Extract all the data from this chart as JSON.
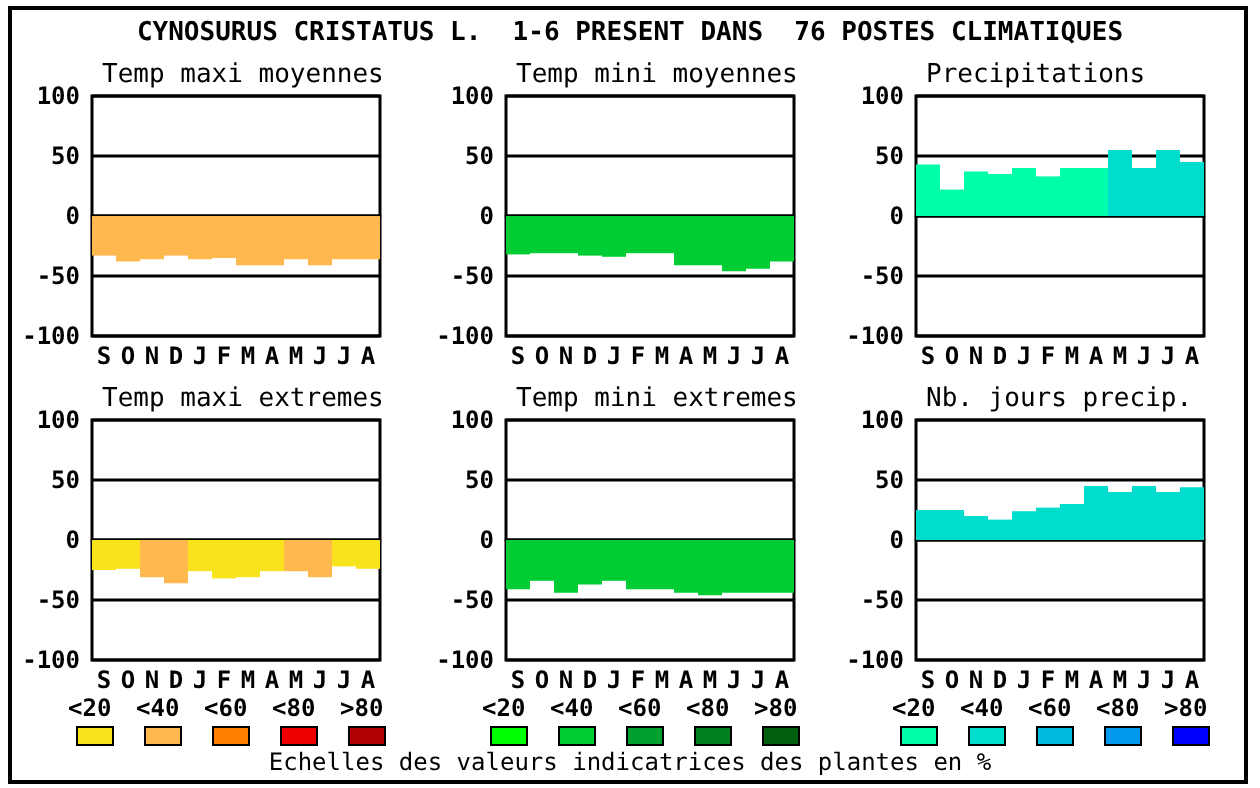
{
  "chart_data": [
    {
      "type": "bar",
      "title": "Temp maxi moyennes",
      "categories": [
        "S",
        "O",
        "N",
        "D",
        "J",
        "F",
        "M",
        "A",
        "M",
        "J",
        "J",
        "A"
      ],
      "values": [
        -33,
        -38,
        -36,
        -33,
        -36,
        -35,
        -41,
        -41,
        -36,
        -41,
        -36,
        -36
      ],
      "colors": [
        "#ffb84d",
        "#ffb84d",
        "#ffb84d",
        "#ffb84d",
        "#ffb84d",
        "#ffb84d",
        "#ffb84d",
        "#ffb84d",
        "#ffb84d",
        "#ffb84d",
        "#ffb84d",
        "#ffb84d"
      ],
      "ylim": [
        -100,
        100
      ],
      "yticks": [
        -100,
        -50,
        0,
        50,
        100
      ],
      "grid": "y"
    },
    {
      "type": "bar",
      "title": "Temp mini moyennes",
      "categories": [
        "S",
        "O",
        "N",
        "D",
        "J",
        "F",
        "M",
        "A",
        "M",
        "J",
        "J",
        "A"
      ],
      "values": [
        -32,
        -31,
        -31,
        -33,
        -34,
        -31,
        -31,
        -41,
        -41,
        -46,
        -44,
        -38
      ],
      "colors": [
        "#00cc33",
        "#00cc33",
        "#00cc33",
        "#00cc33",
        "#00cc33",
        "#00cc33",
        "#00cc33",
        "#00cc33",
        "#00cc33",
        "#00cc33",
        "#00cc33",
        "#00cc33"
      ],
      "ylim": [
        -100,
        100
      ],
      "yticks": [
        -100,
        -50,
        0,
        50,
        100
      ],
      "grid": "y"
    },
    {
      "type": "bar",
      "title": "Precipitations",
      "categories": [
        "S",
        "O",
        "N",
        "D",
        "J",
        "F",
        "M",
        "A",
        "M",
        "J",
        "J",
        "A"
      ],
      "values": [
        43,
        22,
        37,
        35,
        40,
        33,
        40,
        40,
        55,
        40,
        55,
        45
      ],
      "colors": [
        "#00ffaa",
        "#00ffaa",
        "#00ffaa",
        "#00ffaa",
        "#00ffaa",
        "#00ffaa",
        "#00ffaa",
        "#00ffaa",
        "#00ddcc",
        "#00ddcc",
        "#00ddcc",
        "#00ddcc"
      ],
      "ylim": [
        -100,
        100
      ],
      "yticks": [
        -100,
        -50,
        0,
        50,
        100
      ],
      "grid": "y"
    },
    {
      "type": "bar",
      "title": "Temp maxi extremes",
      "categories": [
        "S",
        "O",
        "N",
        "D",
        "J",
        "F",
        "M",
        "A",
        "M",
        "J",
        "J",
        "A"
      ],
      "values": [
        -25,
        -24,
        -31,
        -36,
        -26,
        -32,
        -31,
        -26,
        -26,
        -31,
        -22,
        -24
      ],
      "colors": [
        "#f8e41c",
        "#f8e41c",
        "#ffb84d",
        "#ffb84d",
        "#f8e41c",
        "#f8e41c",
        "#f8e41c",
        "#f8e41c",
        "#ffb84d",
        "#ffb84d",
        "#f8e41c",
        "#f8e41c"
      ],
      "ylim": [
        -100,
        100
      ],
      "yticks": [
        -100,
        -50,
        0,
        50,
        100
      ],
      "grid": "y"
    },
    {
      "type": "bar",
      "title": "Temp mini extremes",
      "categories": [
        "S",
        "O",
        "N",
        "D",
        "J",
        "F",
        "M",
        "A",
        "M",
        "J",
        "J",
        "A"
      ],
      "values": [
        -41,
        -34,
        -44,
        -37,
        -34,
        -41,
        -41,
        -44,
        -46,
        -44,
        -44,
        -44
      ],
      "colors": [
        "#00cc33",
        "#00cc33",
        "#00cc33",
        "#00cc33",
        "#00cc33",
        "#00cc33",
        "#00cc33",
        "#00cc33",
        "#00cc33",
        "#00cc33",
        "#00cc33",
        "#00cc33"
      ],
      "ylim": [
        -100,
        100
      ],
      "yticks": [
        -100,
        -50,
        0,
        50,
        100
      ],
      "grid": "y"
    },
    {
      "type": "bar",
      "title": "Nb. jours precip.",
      "categories": [
        "S",
        "O",
        "N",
        "D",
        "J",
        "F",
        "M",
        "A",
        "M",
        "J",
        "J",
        "A"
      ],
      "values": [
        25,
        25,
        20,
        17,
        24,
        27,
        30,
        45,
        40,
        45,
        40,
        44
      ],
      "colors": [
        "#00ddcc",
        "#00ddcc",
        "#00ddcc",
        "#00ddcc",
        "#00ddcc",
        "#00ddcc",
        "#00ddcc",
        "#00ddcc",
        "#00ddcc",
        "#00ddcc",
        "#00ddcc",
        "#00ddcc"
      ],
      "ylim": [
        -100,
        100
      ],
      "yticks": [
        -100,
        -50,
        0,
        50,
        100
      ],
      "grid": "y"
    },
    {
      "type": "other",
      "title": "CYNOSURUS CRISTATUS L.  1-6 PRESENT DANS  76 POSTES CLIMATIQUES",
      "categories": [
        "<20",
        "<40",
        "<60",
        "<80",
        ">80",
        "<20",
        "<40",
        "<60",
        "<80",
        ">80",
        "<20",
        "<40",
        "<60",
        "<80",
        ">80"
      ],
      "colors": [
        "#f8e41c",
        "#ffb84d",
        "#ff8000",
        "#ee0000",
        "#b00000",
        "#00ff00",
        "#00cc33",
        "#00a030",
        "#008020",
        "#006010",
        "#00ffaa",
        "#00ddcc",
        "#00bbdd",
        "#0099ee",
        "#0000ff"
      ],
      "annotations": [
        "Echelles des valeurs indicatrices des plantes en %"
      ]
    }
  ]
}
